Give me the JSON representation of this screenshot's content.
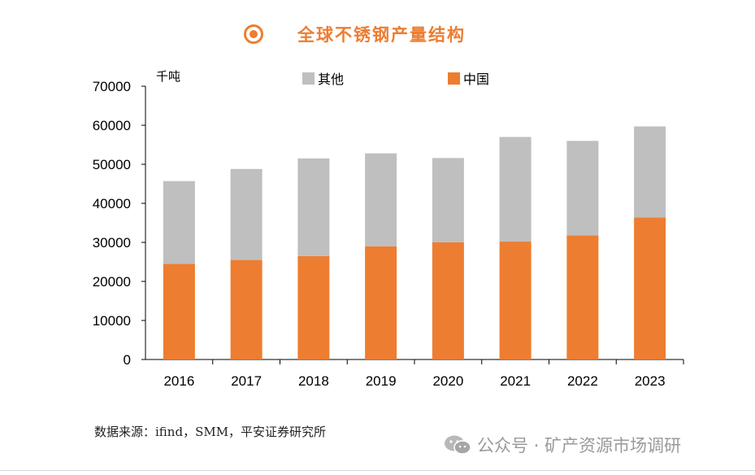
{
  "title": "全球不锈钢产量结构",
  "chart_data": {
    "type": "bar",
    "stacked": true,
    "title": "全球不锈钢产量结构",
    "unit_label": "千吨",
    "categories": [
      "2016",
      "2017",
      "2018",
      "2019",
      "2020",
      "2021",
      "2022",
      "2023"
    ],
    "series": [
      {
        "name": "中国",
        "color": "#ED7D31",
        "values": [
          24500,
          25500,
          26500,
          29000,
          30000,
          30200,
          31800,
          36400
        ]
      },
      {
        "name": "其他",
        "color": "#BFBFBF",
        "values": [
          21200,
          23300,
          25000,
          23800,
          21600,
          26800,
          24200,
          23300
        ]
      }
    ],
    "legend_order": [
      "其他",
      "中国"
    ],
    "legend_position": "top",
    "ylim": [
      0,
      70000
    ],
    "yticks": [
      "0",
      "10000",
      "20000",
      "30000",
      "40000",
      "50000",
      "60000",
      "70000"
    ],
    "grid": false
  },
  "source_text": "数据来源：ifind，SMM，平安证券研究所",
  "watermark": "公众号 · 矿产资源市场调研"
}
